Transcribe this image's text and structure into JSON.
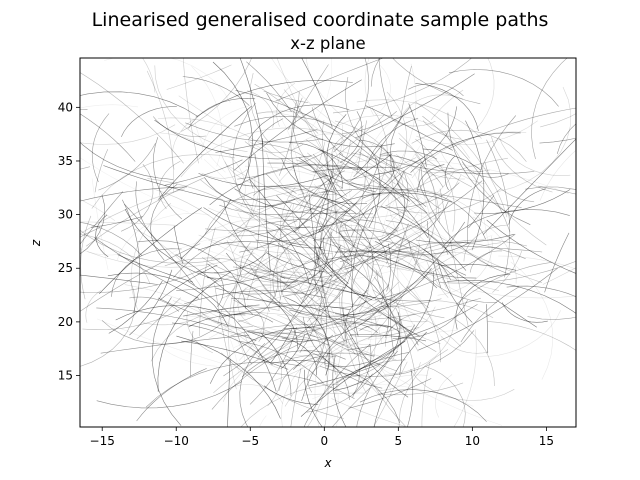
{
  "chart_data": {
    "type": "line",
    "title": "Linearised generalised coordinate sample paths",
    "subtitle": "x-z plane",
    "xlabel": "x",
    "ylabel": "z",
    "xlim": [
      -16.5,
      17.0
    ],
    "ylim": [
      10.2,
      44.6
    ],
    "xticks": [
      -15,
      -10,
      -5,
      0,
      5,
      10,
      15
    ],
    "yticks": [
      15,
      20,
      25,
      30,
      35,
      40
    ],
    "xtick_labels": [
      "−15",
      "−10",
      "−5",
      "0",
      "5",
      "10",
      "15"
    ],
    "ytick_labels": [
      "15",
      "20",
      "25",
      "30",
      "35",
      "40"
    ],
    "grid": false,
    "series_color": "#000000",
    "num_paths": 650,
    "sample_paths_description": "many short curved segments in varying grey alpha, roughly forming a bowl/butterfly shape spanning x from -15 to 15 and z from 11 to 43"
  }
}
